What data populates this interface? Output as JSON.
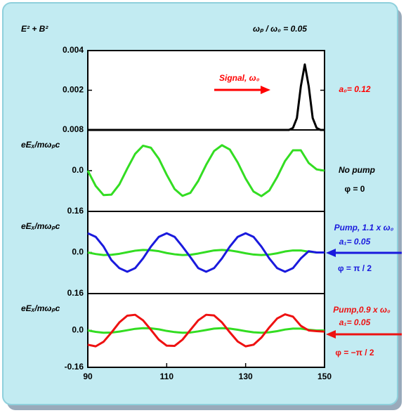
{
  "chart_data": [
    {
      "type": "line",
      "title": "ωₚ / ω₀ = 0.05",
      "ylabel": "E² + B²",
      "x": [
        90,
        140,
        141,
        142,
        143,
        144,
        145,
        146,
        147,
        148,
        149,
        150
      ],
      "series": [
        {
          "color": "#000000",
          "values": [
            0,
            0,
            0,
            0.0001,
            0.0006,
            0.0022,
            0.0033,
            0.0022,
            0.0006,
            0.0001,
            0,
            0
          ]
        }
      ],
      "xlim": [
        90,
        150
      ],
      "ylim": [
        0,
        0.004
      ],
      "yticks": [
        0.002,
        0.004
      ],
      "edge_label": "0.008",
      "annotations": [
        {
          "text": "Signal, ω₀",
          "color": "#ff0000"
        },
        {
          "text": "a₀= 0.12",
          "color": "#ff0000"
        }
      ]
    },
    {
      "type": "line",
      "ylabel": "eEₓ/mωₚc",
      "x": [
        90,
        92,
        94,
        96,
        98,
        100,
        102,
        104,
        106,
        108,
        110,
        112,
        114,
        116,
        118,
        120,
        122,
        124,
        126,
        128,
        130,
        132,
        134,
        136,
        138,
        140,
        142,
        144,
        146,
        148,
        150
      ],
      "series": [
        {
          "color": "#33dd22",
          "values": [
            0,
            -0.06,
            -0.096,
            -0.094,
            -0.054,
            0.008,
            0.066,
            0.098,
            0.09,
            0.047,
            -0.016,
            -0.072,
            -0.099,
            -0.087,
            -0.04,
            0.023,
            0.077,
            0.1,
            0.083,
            0.032,
            -0.031,
            -0.082,
            -0.1,
            -0.078,
            -0.025,
            0.038,
            0.08,
            0.08,
            0.03,
            0.005,
            0
          ]
        }
      ],
      "xlim": [
        90,
        150
      ],
      "ylim": [
        -0.16,
        0.16
      ],
      "yticks": [
        {
          "value": 0,
          "label": "0.0"
        }
      ],
      "annotations": [
        {
          "text": "No pump",
          "color": "#000000"
        },
        {
          "text": "φ = 0",
          "color": "#000000"
        }
      ]
    },
    {
      "type": "line",
      "ylabel": "eEₓ/mωₚc",
      "x": [
        90,
        92,
        94,
        96,
        98,
        100,
        102,
        104,
        106,
        108,
        110,
        112,
        114,
        116,
        118,
        120,
        122,
        124,
        126,
        128,
        130,
        132,
        134,
        136,
        138,
        140,
        142,
        144,
        146,
        148,
        150
      ],
      "series": [
        {
          "color": "#33dd22",
          "values": [
            0,
            -0.006,
            -0.01,
            -0.009,
            -0.005,
            0.001,
            0.007,
            0.01,
            0.009,
            0.005,
            -0.002,
            -0.007,
            -0.01,
            -0.009,
            -0.004,
            0.002,
            0.008,
            0.01,
            0.008,
            0.003,
            -0.003,
            -0.008,
            -0.01,
            -0.008,
            -0.003,
            0.004,
            0.008,
            0.008,
            0.003,
            0,
            0
          ]
        },
        {
          "color": "#1a1add",
          "values": [
            0.075,
            0.061,
            0.023,
            -0.03,
            -0.061,
            -0.075,
            -0.061,
            -0.023,
            0.023,
            0.061,
            0.075,
            0.061,
            0.023,
            -0.018,
            -0.061,
            -0.075,
            -0.061,
            -0.023,
            0.023,
            0.061,
            0.075,
            0.061,
            0.023,
            -0.023,
            -0.061,
            -0.075,
            -0.061,
            -0.023,
            0.005,
            0,
            0
          ]
        }
      ],
      "xlim": [
        90,
        150
      ],
      "ylim": [
        -0.16,
        0.16
      ],
      "yticks": [
        0.16,
        {
          "value": 0,
          "label": "0.0"
        }
      ],
      "annotations": [
        {
          "text": "Pump, 1.1 x ω₀",
          "color": "#1a1add"
        },
        {
          "text": "a₁= 0.05",
          "color": "#1a1add"
        },
        {
          "text": "φ = π / 2",
          "color": "#1a1add"
        }
      ]
    },
    {
      "type": "line",
      "ylabel": "eEₓ/mωₚc",
      "x": [
        90,
        92,
        94,
        96,
        98,
        100,
        102,
        104,
        106,
        108,
        110,
        112,
        114,
        116,
        118,
        120,
        122,
        124,
        126,
        128,
        130,
        132,
        134,
        136,
        138,
        140,
        142,
        144,
        146,
        148,
        150
      ],
      "series": [
        {
          "color": "#33dd22",
          "values": [
            0,
            -0.006,
            -0.01,
            -0.009,
            -0.005,
            0.001,
            0.007,
            0.01,
            0.009,
            0.005,
            -0.002,
            -0.007,
            -0.01,
            -0.009,
            -0.004,
            0.002,
            0.008,
            0.01,
            0.008,
            0.003,
            -0.003,
            -0.008,
            -0.01,
            -0.008,
            -0.003,
            0.004,
            0.008,
            0.008,
            0.003,
            0,
            0
          ]
        },
        {
          "color": "#ee1111",
          "values": [
            -0.062,
            -0.069,
            -0.049,
            -0.009,
            0.035,
            0.064,
            0.068,
            0.044,
            0.003,
            -0.04,
            -0.066,
            -0.067,
            -0.04,
            0.002,
            0.044,
            0.068,
            0.065,
            0.035,
            -0.008,
            -0.048,
            -0.069,
            -0.062,
            -0.031,
            0.013,
            0.052,
            0.07,
            0.06,
            0.02,
            0,
            -0.003,
            -0.005
          ]
        }
      ],
      "xlim": [
        90,
        150
      ],
      "ylim": [
        -0.16,
        0.16
      ],
      "yticks": [
        0.16,
        {
          "value": 0,
          "label": "0.0"
        },
        -0.16
      ],
      "xticks": [
        90,
        110,
        130,
        150
      ],
      "annotations": [
        {
          "text": "Pump,0.9 x ω₀",
          "color": "#ee1111"
        },
        {
          "text": "a₁= 0.05",
          "color": "#ee1111"
        },
        {
          "text": "φ = −π / 2",
          "color": "#ee1111"
        }
      ]
    }
  ]
}
